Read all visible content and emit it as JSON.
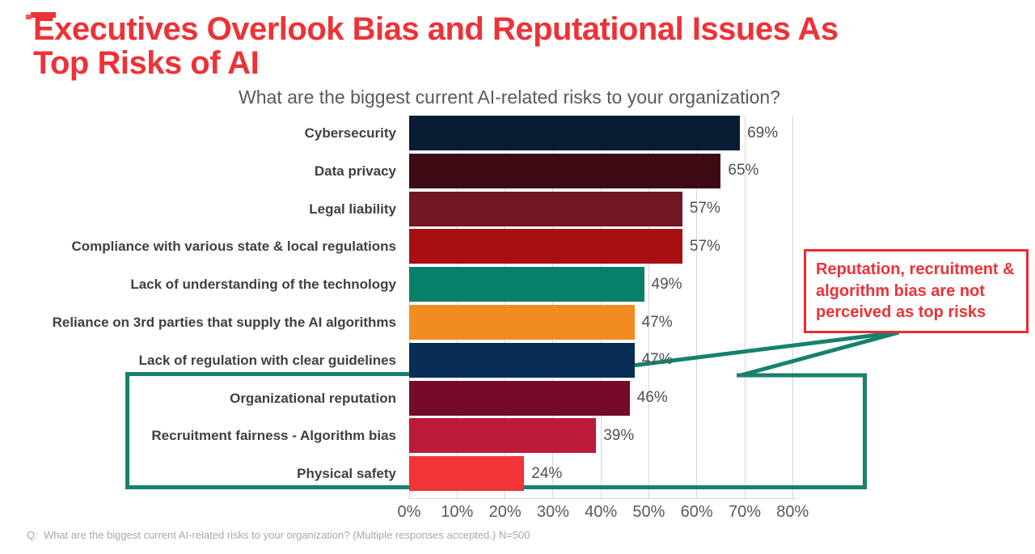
{
  "slide": {
    "title_line1": "Executives Overlook Bias and Reputational Issues As",
    "title_line2": "Top Risks of AI",
    "footnote": "Q:  What are the biggest current AI-related risks to your organization? (Multiple responses accepted.) N=500",
    "accent_red": "#ed3237",
    "annotation_green": "#17816d"
  },
  "callout": {
    "text": "Reputation, recruitment & algorithm bias are not perceived as top risks",
    "border_color": "#ea2b33",
    "text_color": "#ed3237"
  },
  "chart_data": {
    "type": "bar",
    "orientation": "horizontal",
    "title": "What are the biggest current AI-related risks to your organization?",
    "categories": [
      "Cybersecurity",
      "Data privacy",
      "Legal liability",
      "Compliance with various state & local regulations",
      "Lack of understanding of the technology",
      "Reliance on 3rd parties that supply the AI algorithms",
      "Lack of regulation with clear guidelines",
      "Organizational reputation",
      "Recruitment fairness - Algorithm bias",
      "Physical safety"
    ],
    "values": [
      69,
      65,
      57,
      57,
      49,
      47,
      47,
      46,
      39,
      24
    ],
    "value_labels": [
      "69%",
      "65%",
      "57%",
      "57%",
      "49%",
      "47%",
      "47%",
      "46%",
      "39%",
      "24%"
    ],
    "bar_colors": [
      "#0a1c33",
      "#3e0a14",
      "#701722",
      "#a80f13",
      "#078069",
      "#f28c20",
      "#082e55",
      "#750b29",
      "#bd1938",
      "#f23338"
    ],
    "x_ticks": [
      "0%",
      "10%",
      "20%",
      "30%",
      "40%",
      "50%",
      "60%",
      "70%",
      "80%"
    ],
    "xlim": [
      0,
      80
    ],
    "grid": "vertical",
    "legend": "none",
    "highlight_box_categories": [
      "Organizational reputation",
      "Recruitment fairness - Algorithm bias",
      "Physical safety"
    ],
    "highlight_note": "Reputation, recruitment & algorithm bias are not perceived as top risks"
  }
}
